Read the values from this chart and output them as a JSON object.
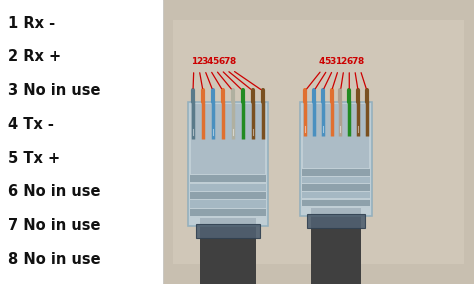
{
  "labels": [
    "1 Rx -",
    "2 Rx +",
    "3 No in use",
    "4 Tx -",
    "5 Tx +",
    "6 No in use",
    "7 No in use",
    "8 No in use"
  ],
  "label_fontsize": 10.5,
  "label_color": "#111111",
  "bg_left": "#ffffff",
  "bg_right": "#d4c8b8",
  "pin_label_color": "#cc0000",
  "pin_labels_left": [
    "1",
    "2",
    "3",
    "4",
    "5",
    "6",
    "7",
    "8"
  ],
  "pin_labels_right": [
    "4",
    "5",
    "3",
    "1",
    "2",
    "6",
    "7",
    "8"
  ],
  "wire_colors_left": [
    "#5a7a8a",
    "#e07030",
    "#4a90c0",
    "#e07030",
    "#b0b0a0",
    "#228b22",
    "#7a5020",
    "#7a5020"
  ],
  "wire_colors_right": [
    "#e07030",
    "#4a90c0",
    "#4a90c0",
    "#e07030",
    "#b0a090",
    "#228b22",
    "#7a5020",
    "#7a5020"
  ],
  "connector_fill": "#ccd8e0",
  "connector_edge": "#a0b8c8",
  "bar_fill": "#8090a0",
  "clip_fill": "#304050",
  "cable_fill": "#404040",
  "photo_bg": "#c8bfb0"
}
